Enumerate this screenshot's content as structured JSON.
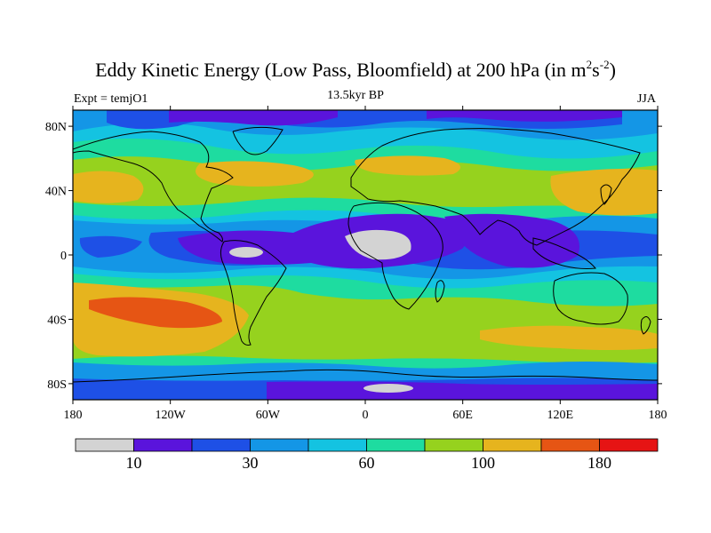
{
  "title": {
    "main_prefix": "Eddy Kinetic Energy (Low Pass, Bloomfield) at 200 hPa (in m",
    "sup1": "2",
    "mid": "s",
    "sup2": "-2",
    "suffix": ")"
  },
  "subtitle_left": "Expt = temjO1",
  "subtitle_center": "13.5kyr BP",
  "subtitle_right": "JJA",
  "axes": {
    "lat_ticks": [
      {
        "value": 80,
        "label": "80N"
      },
      {
        "value": 40,
        "label": "40N"
      },
      {
        "value": 0,
        "label": "0"
      },
      {
        "value": -40,
        "label": "40S"
      },
      {
        "value": -80,
        "label": "80S"
      }
    ],
    "lon_ticks": [
      {
        "value": -180,
        "label": "180"
      },
      {
        "value": -120,
        "label": "120W"
      },
      {
        "value": -60,
        "label": "60W"
      },
      {
        "value": 0,
        "label": "0"
      },
      {
        "value": 60,
        "label": "60E"
      },
      {
        "value": 120,
        "label": "120E"
      },
      {
        "value": 180,
        "label": "180"
      }
    ]
  },
  "colorbar": {
    "colors": [
      "#d3d3d3",
      "#5a14dc",
      "#1e50e6",
      "#1496e6",
      "#14c3e1",
      "#1edca0",
      "#96d21e",
      "#e6b41e",
      "#e65514",
      "#e61414"
    ],
    "labels": [
      {
        "boundary": 1,
        "text": "10"
      },
      {
        "boundary": 3,
        "text": "30"
      },
      {
        "boundary": 5,
        "text": "60"
      },
      {
        "boundary": 7,
        "text": "100"
      },
      {
        "boundary": 9,
        "text": "180"
      }
    ]
  },
  "map_data": {
    "projection": "cylindrical-equidistant",
    "lon_range": [
      -180,
      180
    ],
    "lat_range": [
      -90,
      90
    ],
    "field": "eddy_kinetic_energy_200hPa_JJA",
    "units": "m2 s-2"
  }
}
